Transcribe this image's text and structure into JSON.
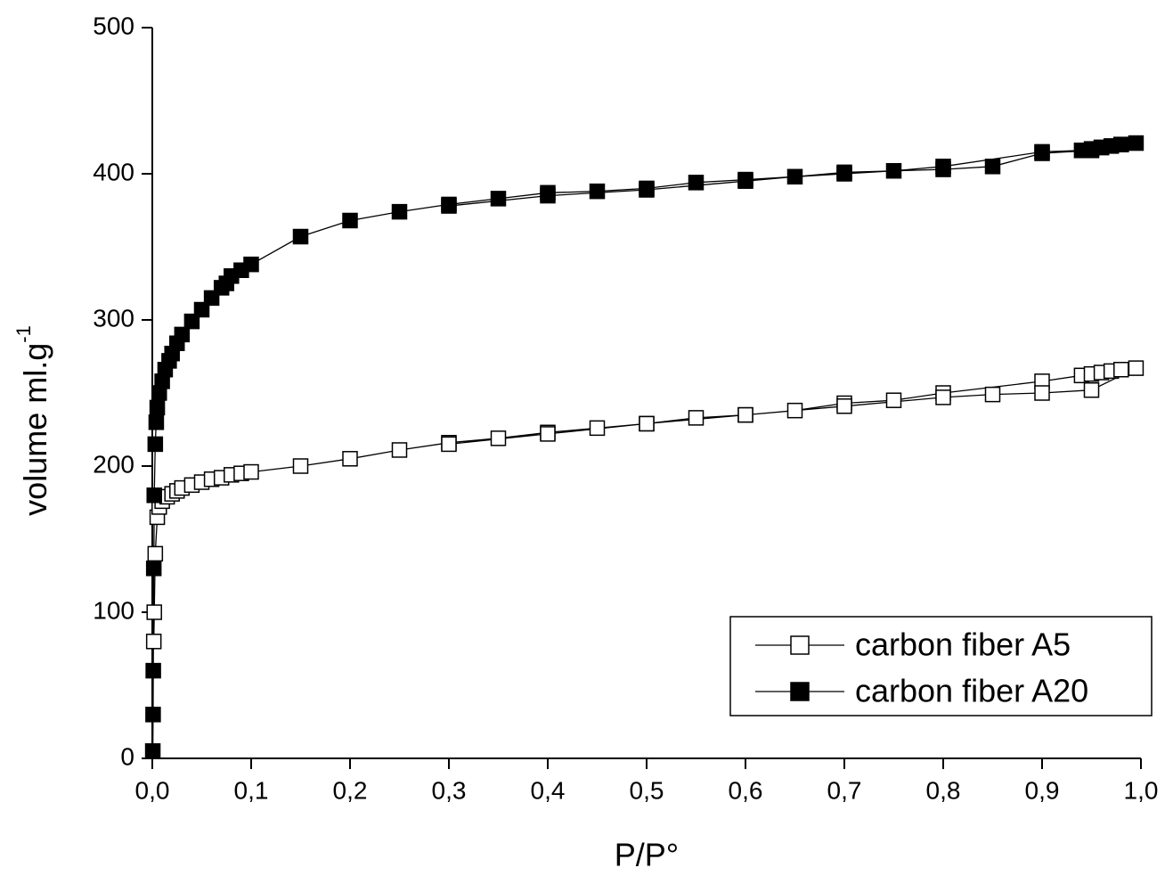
{
  "chart_data": {
    "type": "line",
    "xlabel": "P/P°",
    "ylabel": {
      "text": "volume ml.g",
      "superscript": "-1"
    },
    "xlim": [
      0,
      1.0
    ],
    "ylim": [
      0,
      500
    ],
    "xticks": [
      {
        "value": 0,
        "label": "0,0"
      },
      {
        "value": 0.1,
        "label": "0,1"
      },
      {
        "value": 0.2,
        "label": "0,2"
      },
      {
        "value": 0.3,
        "label": "0,3"
      },
      {
        "value": 0.4,
        "label": "0,4"
      },
      {
        "value": 0.5,
        "label": "0,5"
      },
      {
        "value": 0.6,
        "label": "0,6"
      },
      {
        "value": 0.7,
        "label": "0,7"
      },
      {
        "value": 0.8,
        "label": "0,8"
      },
      {
        "value": 0.9,
        "label": "0,9"
      },
      {
        "value": 1.0,
        "label": "1,0"
      }
    ],
    "yticks": [
      0,
      100,
      200,
      300,
      400,
      500
    ],
    "legend": "lower right",
    "series": [
      {
        "name": "carbon fiber A5",
        "color": "#000000",
        "marker": "open-square",
        "x": [
          0.0015,
          0.002,
          0.003,
          0.005,
          0.007,
          0.01,
          0.015,
          0.02,
          0.025,
          0.03,
          0.04,
          0.05,
          0.06,
          0.07,
          0.08,
          0.09,
          0.1,
          0.15,
          0.2,
          0.25,
          0.3,
          0.35,
          0.4,
          0.45,
          0.5,
          0.55,
          0.6,
          0.65,
          0.7,
          0.75,
          0.8,
          0.9,
          0.94,
          0.95,
          0.96,
          0.97,
          0.98,
          0.995,
          0.95,
          0.9,
          0.85,
          0.8,
          0.7,
          0.6,
          0.5,
          0.4,
          0.3
        ],
        "values": [
          80,
          100,
          140,
          165,
          172,
          176,
          179,
          181,
          183,
          185,
          187,
          189,
          191,
          192,
          194,
          195,
          196,
          200,
          205,
          211,
          216,
          219,
          223,
          226,
          229,
          233,
          235,
          238,
          243,
          245,
          250,
          258,
          262,
          263,
          264,
          265,
          266,
          267,
          252,
          250,
          249,
          247,
          241,
          235,
          229,
          222,
          215
        ]
      },
      {
        "name": "carbon fiber A20",
        "color": "#000000",
        "marker": "filled-square",
        "x": [
          0.0005,
          0.0008,
          0.001,
          0.0015,
          0.002,
          0.003,
          0.004,
          0.005,
          0.007,
          0.01,
          0.013,
          0.017,
          0.02,
          0.025,
          0.03,
          0.04,
          0.05,
          0.06,
          0.07,
          0.075,
          0.08,
          0.09,
          0.1,
          0.15,
          0.2,
          0.25,
          0.3,
          0.35,
          0.4,
          0.45,
          0.5,
          0.55,
          0.6,
          0.65,
          0.7,
          0.75,
          0.8,
          0.9,
          0.94,
          0.95,
          0.96,
          0.97,
          0.98,
          0.995,
          0.98,
          0.96,
          0.95,
          0.9,
          0.85,
          0.8,
          0.7,
          0.6,
          0.5,
          0.4,
          0.3
        ],
        "values": [
          5,
          30,
          60,
          130,
          180,
          215,
          230,
          240,
          250,
          258,
          266,
          272,
          277,
          284,
          290,
          299,
          307,
          315,
          322,
          325,
          330,
          334,
          338,
          357,
          368,
          374,
          379,
          383,
          387,
          388,
          390,
          394,
          396,
          398,
          400,
          402,
          405,
          415,
          416,
          417,
          418,
          419,
          420,
          421,
          420,
          418,
          416,
          414,
          405,
          403,
          401,
          395,
          389,
          385,
          378
        ]
      }
    ]
  }
}
